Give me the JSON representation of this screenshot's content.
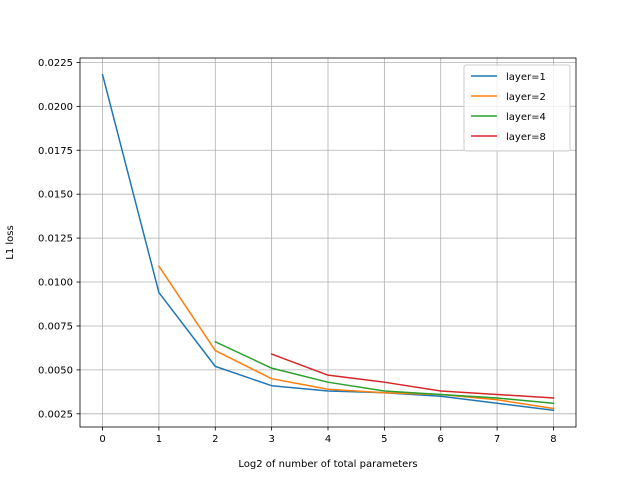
{
  "chart_data": {
    "type": "line",
    "title": "",
    "xlabel": "Log2 of number of total parameters",
    "ylabel": "L1 loss",
    "xlim": [
      -0.4,
      8.4
    ],
    "ylim": [
      0.00175,
      0.02275
    ],
    "xticks": [
      0,
      1,
      2,
      3,
      4,
      5,
      6,
      7,
      8
    ],
    "xtick_labels": [
      "0",
      "1",
      "2",
      "3",
      "4",
      "5",
      "6",
      "7",
      "8"
    ],
    "yticks": [
      0.0025,
      0.005,
      0.0075,
      0.01,
      0.0125,
      0.015,
      0.0175,
      0.02,
      0.0225
    ],
    "ytick_labels": [
      "0.0025",
      "0.0050",
      "0.0075",
      "0.0100",
      "0.0125",
      "0.0150",
      "0.0175",
      "0.0200",
      "0.0225"
    ],
    "grid": true,
    "legend_position": "top-right",
    "series": [
      {
        "name": "layer=1",
        "color": "#1f77b4",
        "x": [
          0,
          1,
          2,
          3,
          4,
          5,
          6,
          7,
          8
        ],
        "y": [
          0.0218,
          0.0094,
          0.0052,
          0.0041,
          0.0038,
          0.0037,
          0.0035,
          0.0031,
          0.0027
        ]
      },
      {
        "name": "layer=2",
        "color": "#ff7f0e",
        "x": [
          1,
          2,
          3,
          4,
          5,
          6,
          7,
          8
        ],
        "y": [
          0.0109,
          0.0061,
          0.0045,
          0.0039,
          0.0037,
          0.0036,
          0.0033,
          0.0028
        ]
      },
      {
        "name": "layer=4",
        "color": "#2ca02c",
        "x": [
          2,
          3,
          4,
          5,
          6,
          7,
          8
        ],
        "y": [
          0.0066,
          0.0051,
          0.0043,
          0.0038,
          0.0036,
          0.0034,
          0.0031
        ]
      },
      {
        "name": "layer=8",
        "color": "#d62728",
        "x": [
          3,
          4,
          5,
          6,
          7,
          8
        ],
        "y": [
          0.0059,
          0.0047,
          0.0043,
          0.0038,
          0.0036,
          0.0034
        ]
      }
    ]
  }
}
